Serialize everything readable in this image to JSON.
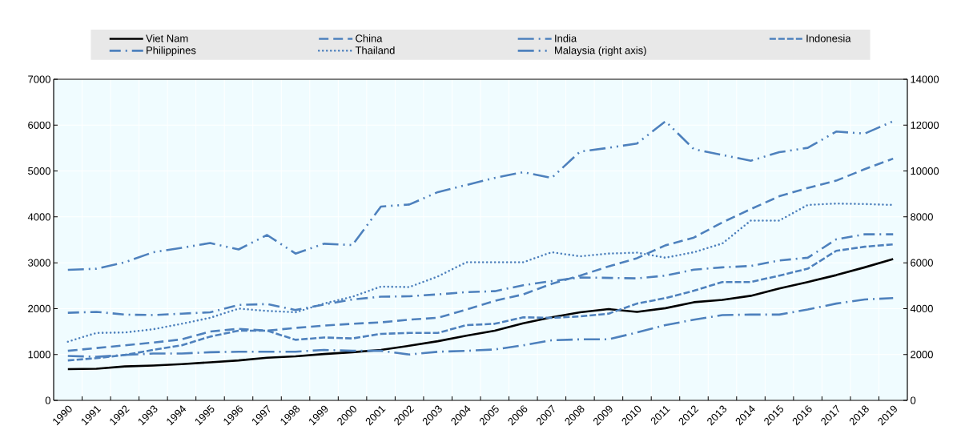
{
  "chart_data": {
    "type": "line",
    "categories": [
      "1990",
      "1991",
      "1992",
      "1993",
      "1994",
      "1995",
      "1996",
      "1997",
      "1998",
      "1999",
      "2000",
      "2001",
      "2002",
      "2003",
      "2004",
      "2005",
      "2006",
      "2007",
      "2008",
      "2009",
      "2010",
      "2011",
      "2012",
      "2013",
      "2014",
      "2015",
      "2016",
      "2017",
      "2018",
      "2019"
    ],
    "series": [
      {
        "name": "Viet Nam",
        "color": "#000000",
        "line_style": "solid",
        "values": [
          680,
          690,
          740,
          760,
          790,
          830,
          870,
          930,
          960,
          1010,
          1050,
          1100,
          1190,
          1290,
          1410,
          1520,
          1680,
          1810,
          1920,
          1990,
          1930,
          2010,
          2140,
          2190,
          2280,
          2440,
          2580,
          2730,
          2900,
          3080
        ]
      },
      {
        "name": "China",
        "color": "#4e81bd",
        "line_style": "dashed",
        "values": [
          1080,
          1140,
          1200,
          1260,
          1330,
          1500,
          1560,
          1520,
          1580,
          1630,
          1670,
          1700,
          1760,
          1800,
          1980,
          2170,
          2310,
          2540,
          2720,
          2920,
          3100,
          3380,
          3550,
          3880,
          4170,
          4450,
          4630,
          4790,
          5040,
          5270
        ]
      },
      {
        "name": "India",
        "color": "#4e81bd",
        "line_style": "longdashdot",
        "values": [
          970,
          950,
          990,
          1020,
          1020,
          1050,
          1060,
          1060,
          1060,
          1100,
          1080,
          1080,
          1000,
          1060,
          1080,
          1110,
          1200,
          1310,
          1330,
          1330,
          1480,
          1640,
          1760,
          1860,
          1870,
          1870,
          1980,
          2110,
          2200,
          2230
        ]
      },
      {
        "name": "Indonesia",
        "color": "#4e81bd",
        "line_style": "shortdash",
        "values": [
          870,
          920,
          990,
          1100,
          1200,
          1390,
          1520,
          1520,
          1320,
          1370,
          1350,
          1450,
          1470,
          1470,
          1640,
          1670,
          1810,
          1800,
          1830,
          1890,
          2110,
          2230,
          2390,
          2580,
          2580,
          2720,
          2870,
          3260,
          3350,
          3400
        ]
      },
      {
        "name": "Philippines",
        "color": "#4e81bd",
        "line_style": "dashdot",
        "values": [
          1910,
          1930,
          1870,
          1860,
          1890,
          1920,
          2080,
          2100,
          1970,
          2090,
          2200,
          2260,
          2270,
          2310,
          2360,
          2380,
          2510,
          2600,
          2680,
          2670,
          2660,
          2720,
          2850,
          2900,
          2930,
          3050,
          3110,
          3510,
          3620,
          3620
        ]
      },
      {
        "name": "Thailand",
        "color": "#4e81bd",
        "line_style": "dotted",
        "values": [
          1280,
          1470,
          1480,
          1550,
          1670,
          1800,
          2000,
          1950,
          1920,
          2110,
          2260,
          2480,
          2470,
          2700,
          3010,
          3010,
          3010,
          3230,
          3140,
          3200,
          3220,
          3110,
          3230,
          3420,
          3920,
          3920,
          4260,
          4290,
          4280,
          4260
        ]
      },
      {
        "name": "Malaysia (right axis)",
        "color": "#4e81bd",
        "line_style": "dashdotdot",
        "axis": "y2",
        "values": [
          5690,
          5740,
          6020,
          6460,
          6650,
          6860,
          6580,
          7210,
          6400,
          6830,
          6770,
          8450,
          8540,
          9080,
          9390,
          9700,
          9950,
          9700,
          10850,
          11010,
          11200,
          12170,
          10950,
          10700,
          10450,
          10820,
          11010,
          11720,
          11630,
          12170
        ]
      }
    ],
    "ylim": [
      0,
      7000
    ],
    "yticks": [
      0,
      1000,
      2000,
      3000,
      4000,
      5000,
      6000,
      7000
    ],
    "y2lim": [
      0,
      14000
    ],
    "y2ticks": [
      0,
      2000,
      4000,
      6000,
      8000,
      10000,
      12000,
      14000
    ],
    "grid": true,
    "legend": "top"
  }
}
